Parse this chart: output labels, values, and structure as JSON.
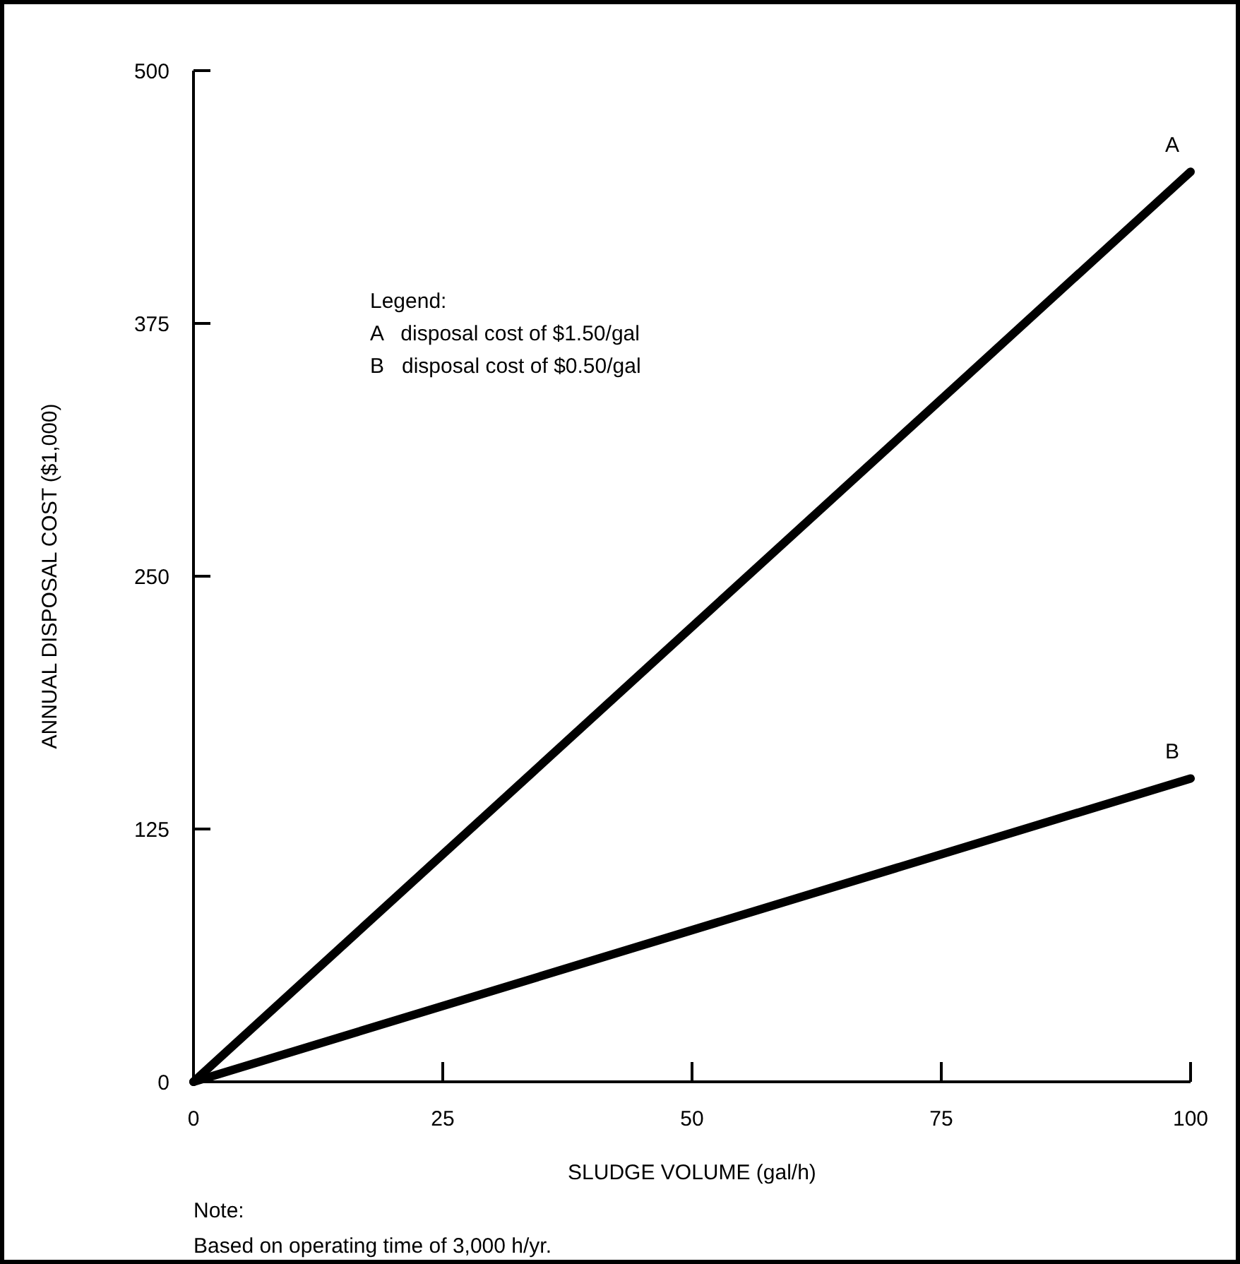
{
  "chart_data": {
    "type": "line",
    "xlabel": "SLUDGE VOLUME (gal/h)",
    "ylabel": "ANNUAL DISPOSAL COST ($1,000)",
    "x": [
      0,
      100
    ],
    "xlim": [
      0,
      100
    ],
    "ylim": [
      0,
      500
    ],
    "xticks": [
      0,
      25,
      50,
      75,
      100
    ],
    "yticks": [
      0,
      125,
      250,
      375,
      500
    ],
    "series": [
      {
        "name": "A",
        "color": "#000000",
        "values": [
          0,
          450
        ]
      },
      {
        "name": "B",
        "color": "#000000",
        "values": [
          0,
          150
        ]
      }
    ],
    "annotations": [
      "Legend:",
      "A   disposal cost of $1.50/gal",
      "B   disposal cost of $0.50/gal",
      "Note:",
      "Based on operating time of 3,000 h/yr."
    ],
    "grid": false,
    "legend": false,
    "marker": "none",
    "line_style": "solid"
  }
}
